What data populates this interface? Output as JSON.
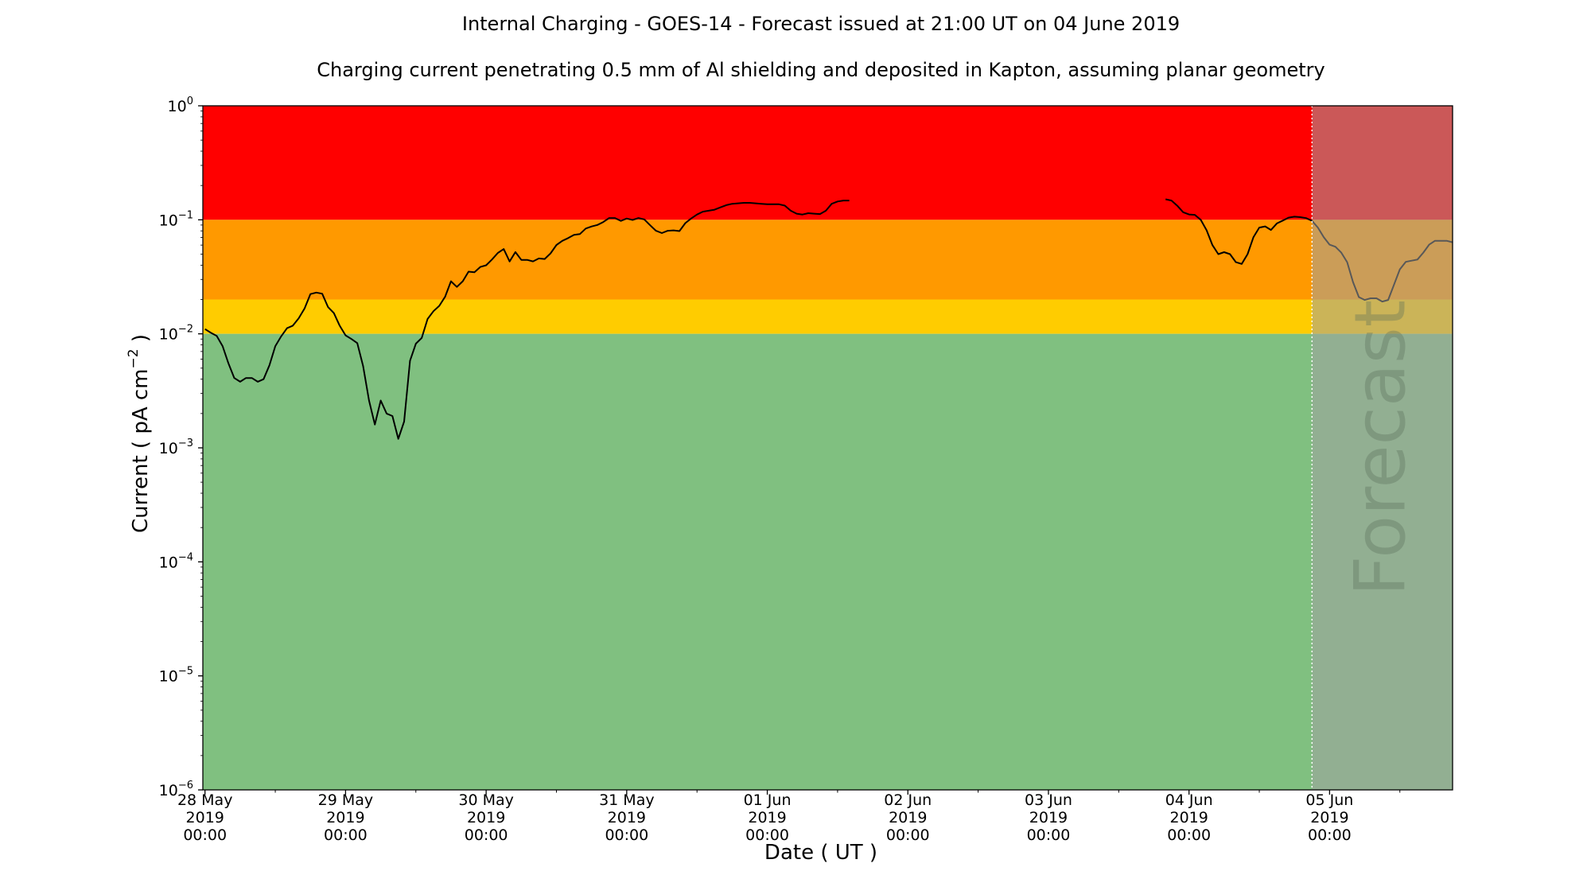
{
  "chart_data": {
    "type": "line",
    "title": "Internal Charging - GOES-14 - Forecast issued at 21:00 UT on 04 June 2019",
    "subtitle": "Charging current penetrating 0.5 mm of Al shielding and deposited in Kapton, assuming planar geometry",
    "xlabel": "Date ( UT )",
    "ylabel": "Current ( pA cm",
    "ylabel_exp": "−2",
    "ylabel_tail": " )",
    "yscale": "log",
    "ylim": [
      1e-06,
      1
    ],
    "xlim": [
      "2019-05-27T23:38",
      "2019-06-05T21:00"
    ],
    "grid": false,
    "x_tick_labels": [
      {
        "t": "2019-05-28T00:00",
        "lines": [
          "28 May",
          "2019",
          "00:00"
        ]
      },
      {
        "t": "2019-05-29T00:00",
        "lines": [
          "29 May",
          "2019",
          "00:00"
        ]
      },
      {
        "t": "2019-05-30T00:00",
        "lines": [
          "30 May",
          "2019",
          "00:00"
        ]
      },
      {
        "t": "2019-05-31T00:00",
        "lines": [
          "31 May",
          "2019",
          "00:00"
        ]
      },
      {
        "t": "2019-06-01T00:00",
        "lines": [
          "01 Jun",
          "2019",
          "00:00"
        ]
      },
      {
        "t": "2019-06-02T00:00",
        "lines": [
          "02 Jun",
          "2019",
          "00:00"
        ]
      },
      {
        "t": "2019-06-03T00:00",
        "lines": [
          "03 Jun",
          "2019",
          "00:00"
        ]
      },
      {
        "t": "2019-06-04T00:00",
        "lines": [
          "04 Jun",
          "2019",
          "00:00"
        ]
      },
      {
        "t": "2019-06-05T00:00",
        "lines": [
          "05 Jun",
          "2019",
          "00:00"
        ]
      }
    ],
    "y_tick_labels": [
      {
        "value": 1,
        "base": "10",
        "exp": "0"
      },
      {
        "value": 0.1,
        "base": "10",
        "exp": "−1"
      },
      {
        "value": 0.01,
        "base": "10",
        "exp": "−2"
      },
      {
        "value": 0.001,
        "base": "10",
        "exp": "−3"
      },
      {
        "value": 0.0001,
        "base": "10",
        "exp": "−4"
      },
      {
        "value": 1e-05,
        "base": "10",
        "exp": "−5"
      },
      {
        "value": 1e-06,
        "base": "10",
        "exp": "−6"
      }
    ],
    "bands": [
      {
        "from": 0.1,
        "to": 1,
        "color": "#ff0000"
      },
      {
        "from": 0.02,
        "to": 0.1,
        "color": "#ff9900"
      },
      {
        "from": 0.01,
        "to": 0.02,
        "color": "#ffcc00"
      },
      {
        "from": 1e-06,
        "to": 0.01,
        "color": "#80c080"
      }
    ],
    "forecast": {
      "start": "2019-06-04T21:00",
      "label": "Forecast",
      "overlay_color": "#a0a0a0",
      "divider_color": "#ffffff"
    },
    "series": [
      {
        "line_color": "#000000",
        "segments": [
          [
            [
              "2019-05-28T00:00",
              0.011
            ],
            [
              "2019-05-28T01:00",
              0.0102
            ],
            [
              "2019-05-28T02:00",
              0.0096
            ],
            [
              "2019-05-28T03:00",
              0.0078
            ],
            [
              "2019-05-28T04:00",
              0.0055
            ],
            [
              "2019-05-28T05:00",
              0.0041
            ],
            [
              "2019-05-28T06:00",
              0.0038
            ],
            [
              "2019-05-28T07:00",
              0.0041
            ],
            [
              "2019-05-28T08:00",
              0.0041
            ],
            [
              "2019-05-28T09:00",
              0.0038
            ],
            [
              "2019-05-28T10:00",
              0.004
            ],
            [
              "2019-05-28T11:00",
              0.0053
            ],
            [
              "2019-05-28T12:00",
              0.0078
            ],
            [
              "2019-05-28T13:00",
              0.0095
            ],
            [
              "2019-05-28T14:00",
              0.0112
            ],
            [
              "2019-05-28T15:00",
              0.0118
            ],
            [
              "2019-05-28T16:00",
              0.0137
            ],
            [
              "2019-05-28T17:00",
              0.0167
            ],
            [
              "2019-05-28T18:00",
              0.0223
            ],
            [
              "2019-05-28T19:00",
              0.023
            ],
            [
              "2019-05-28T20:00",
              0.0225
            ],
            [
              "2019-05-28T21:00",
              0.0172
            ],
            [
              "2019-05-28T22:00",
              0.0152
            ],
            [
              "2019-05-28T23:00",
              0.0118
            ],
            [
              "2019-05-29T00:00",
              0.0097
            ],
            [
              "2019-05-29T01:00",
              0.009
            ],
            [
              "2019-05-29T02:00",
              0.0083
            ],
            [
              "2019-05-29T03:00",
              0.0052
            ],
            [
              "2019-05-29T04:00",
              0.0026
            ],
            [
              "2019-05-29T05:00",
              0.0016
            ],
            [
              "2019-05-29T06:00",
              0.0026
            ],
            [
              "2019-05-29T07:00",
              0.002
            ],
            [
              "2019-05-29T08:00",
              0.0019
            ],
            [
              "2019-05-29T09:00",
              0.0012
            ],
            [
              "2019-05-29T10:00",
              0.0017
            ],
            [
              "2019-05-29T11:00",
              0.0058
            ],
            [
              "2019-05-29T12:00",
              0.0082
            ],
            [
              "2019-05-29T13:00",
              0.0092
            ],
            [
              "2019-05-29T14:00",
              0.0135
            ],
            [
              "2019-05-29T15:00",
              0.0158
            ],
            [
              "2019-05-29T16:00",
              0.0176
            ],
            [
              "2019-05-29T17:00",
              0.0212
            ],
            [
              "2019-05-29T18:00",
              0.0289
            ],
            [
              "2019-05-29T19:00",
              0.0258
            ],
            [
              "2019-05-29T20:00",
              0.0289
            ],
            [
              "2019-05-29T21:00",
              0.0351
            ],
            [
              "2019-05-29T22:00",
              0.0347
            ],
            [
              "2019-05-29T23:00",
              0.0386
            ],
            [
              "2019-05-30T00:00",
              0.0399
            ],
            [
              "2019-05-30T01:00",
              0.0449
            ],
            [
              "2019-05-30T02:00",
              0.0512
            ],
            [
              "2019-05-30T03:00",
              0.0554
            ],
            [
              "2019-05-30T04:00",
              0.0431
            ],
            [
              "2019-05-30T05:00",
              0.0521
            ],
            [
              "2019-05-30T06:00",
              0.0445
            ],
            [
              "2019-05-30T07:00",
              0.0445
            ],
            [
              "2019-05-30T08:00",
              0.0432
            ],
            [
              "2019-05-30T09:00",
              0.0458
            ],
            [
              "2019-05-30T10:00",
              0.0453
            ],
            [
              "2019-05-30T11:00",
              0.0508
            ],
            [
              "2019-05-30T12:00",
              0.0601
            ],
            [
              "2019-05-30T13:00",
              0.0654
            ],
            [
              "2019-05-30T14:00",
              0.0692
            ],
            [
              "2019-05-30T15:00",
              0.0738
            ],
            [
              "2019-05-30T16:00",
              0.0749
            ],
            [
              "2019-05-30T17:00",
              0.0839
            ],
            [
              "2019-05-30T18:00",
              0.0874
            ],
            [
              "2019-05-30T19:00",
              0.0902
            ],
            [
              "2019-05-30T20:00",
              0.0957
            ],
            [
              "2019-05-30T21:00",
              0.1037
            ],
            [
              "2019-05-30T22:00",
              0.1037
            ],
            [
              "2019-05-30T23:00",
              0.0978
            ],
            [
              "2019-05-31T00:00",
              0.1027
            ],
            [
              "2019-05-31T01:00",
              0.0998
            ],
            [
              "2019-05-31T02:00",
              0.1037
            ],
            [
              "2019-05-31T03:00",
              0.1008
            ],
            [
              "2019-05-31T04:00",
              0.0895
            ],
            [
              "2019-05-31T05:00",
              0.0801
            ],
            [
              "2019-05-31T06:00",
              0.0765
            ],
            [
              "2019-05-31T07:00",
              0.0801
            ],
            [
              "2019-05-31T08:00",
              0.0808
            ],
            [
              "2019-05-31T09:00",
              0.0797
            ],
            [
              "2019-05-31T10:00",
              0.0935
            ],
            [
              "2019-05-31T11:00",
              0.1027
            ],
            [
              "2019-05-31T12:00",
              0.1113
            ],
            [
              "2019-05-31T13:00",
              0.1178
            ],
            [
              "2019-05-31T14:00",
              0.1202
            ],
            [
              "2019-05-31T15:00",
              0.1227
            ],
            [
              "2019-05-31T16:00",
              0.1285
            ],
            [
              "2019-05-31T17:00",
              0.1345
            ],
            [
              "2019-05-31T18:00",
              0.1382
            ],
            [
              "2019-05-31T19:00",
              0.1395
            ],
            [
              "2019-05-31T20:00",
              0.1408
            ],
            [
              "2019-05-31T21:00",
              0.1408
            ],
            [
              "2019-05-31T22:00",
              0.1395
            ],
            [
              "2019-05-31T23:00",
              0.1382
            ],
            [
              "2019-06-01T00:00",
              0.1369
            ],
            [
              "2019-06-01T01:00",
              0.1369
            ],
            [
              "2019-06-01T02:00",
              0.1369
            ],
            [
              "2019-06-01T03:00",
              0.1332
            ],
            [
              "2019-06-01T04:00",
              0.1202
            ],
            [
              "2019-06-01T05:00",
              0.1133
            ],
            [
              "2019-06-01T06:00",
              0.1113
            ],
            [
              "2019-06-01T07:00",
              0.1143
            ],
            [
              "2019-06-01T08:00",
              0.1133
            ],
            [
              "2019-06-01T09:00",
              0.1123
            ],
            [
              "2019-06-01T10:00",
              0.1202
            ],
            [
              "2019-06-01T11:00",
              0.1382
            ],
            [
              "2019-06-01T12:00",
              0.1448
            ],
            [
              "2019-06-01T13:00",
              0.1475
            ],
            [
              "2019-06-01T14:00",
              0.1475
            ]
          ],
          [
            [
              "2019-06-03T20:00",
              0.1515
            ],
            [
              "2019-06-03T21:00",
              0.1475
            ],
            [
              "2019-06-03T22:00",
              0.133
            ],
            [
              "2019-06-03T23:00",
              0.1165
            ],
            [
              "2019-06-04T00:00",
              0.1115
            ],
            [
              "2019-06-04T01:00",
              0.1105
            ],
            [
              "2019-06-04T02:00",
              0.1
            ],
            [
              "2019-06-04T03:00",
              0.081
            ],
            [
              "2019-06-04T04:00",
              0.06
            ],
            [
              "2019-06-04T05:00",
              0.05
            ],
            [
              "2019-06-04T06:00",
              0.052
            ],
            [
              "2019-06-04T07:00",
              0.05
            ],
            [
              "2019-06-04T08:00",
              0.0425
            ],
            [
              "2019-06-04T09:00",
              0.041
            ],
            [
              "2019-06-04T10:00",
              0.05
            ],
            [
              "2019-06-04T11:00",
              0.0705
            ],
            [
              "2019-06-04T12:00",
              0.0855
            ],
            [
              "2019-06-04T13:00",
              0.0875
            ],
            [
              "2019-06-04T14:00",
              0.0815
            ],
            [
              "2019-06-04T15:00",
              0.093
            ],
            [
              "2019-06-04T16:00",
              0.0985
            ],
            [
              "2019-06-04T17:00",
              0.1045
            ],
            [
              "2019-06-04T18:00",
              0.1065
            ],
            [
              "2019-06-04T19:00",
              0.1055
            ],
            [
              "2019-06-04T20:00",
              0.1035
            ],
            [
              "2019-06-04T21:00",
              0.098
            ],
            [
              "2019-06-04T22:00",
              0.0855
            ],
            [
              "2019-06-04T23:00",
              0.0705
            ],
            [
              "2019-06-05T00:00",
              0.0605
            ],
            [
              "2019-06-05T01:00",
              0.058
            ],
            [
              "2019-06-05T02:00",
              0.0515
            ],
            [
              "2019-06-05T03:00",
              0.0425
            ],
            [
              "2019-06-05T04:00",
              0.0285
            ],
            [
              "2019-06-05T05:00",
              0.021
            ],
            [
              "2019-06-05T06:00",
              0.0198
            ],
            [
              "2019-06-05T07:00",
              0.0205
            ],
            [
              "2019-06-05T08:00",
              0.0205
            ],
            [
              "2019-06-05T09:00",
              0.0192
            ],
            [
              "2019-06-05T10:00",
              0.0198
            ],
            [
              "2019-06-05T11:00",
              0.027
            ],
            [
              "2019-06-05T12:00",
              0.0368
            ],
            [
              "2019-06-05T13:00",
              0.0428
            ],
            [
              "2019-06-05T14:00",
              0.0438
            ],
            [
              "2019-06-05T15:00",
              0.0448
            ],
            [
              "2019-06-05T16:00",
              0.0515
            ],
            [
              "2019-06-05T17:00",
              0.0605
            ],
            [
              "2019-06-05T18:00",
              0.0655
            ],
            [
              "2019-06-05T19:00",
              0.0655
            ],
            [
              "2019-06-05T20:00",
              0.0655
            ],
            [
              "2019-06-05T21:00",
              0.0635
            ]
          ]
        ]
      }
    ]
  }
}
